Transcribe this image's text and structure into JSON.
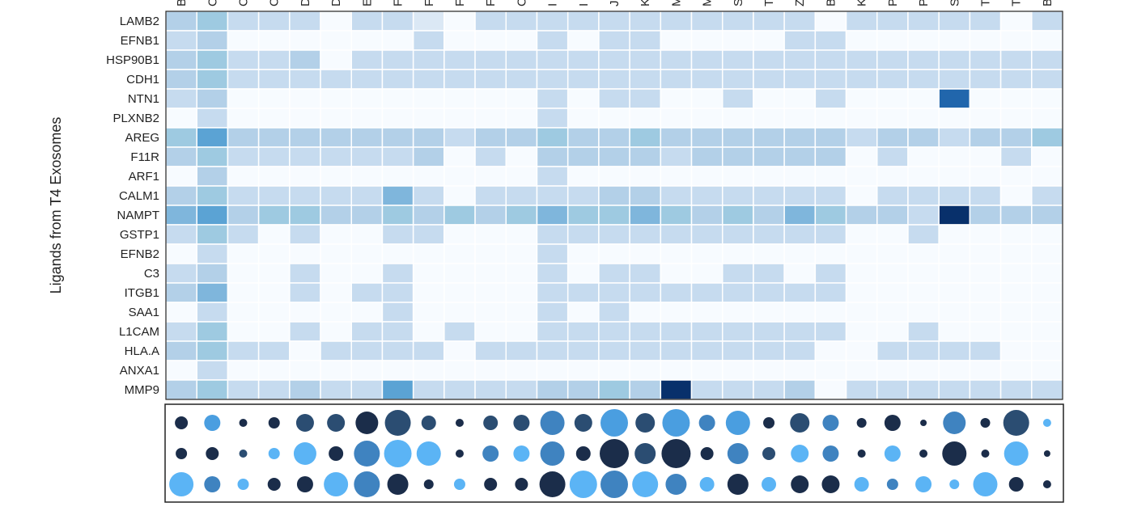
{
  "chart_data": [
    {
      "type": "heatmap",
      "y_label": "Ligands from T4 Exosomes",
      "categories": [
        "B",
        "C",
        "C",
        "C",
        "D",
        "D",
        "E",
        "F",
        "F",
        "F",
        "F",
        "C",
        "I",
        "I",
        "J",
        "K",
        "M",
        "M",
        "S",
        "T",
        "Z",
        "B",
        "K",
        "P",
        "P",
        "S",
        "T",
        "T",
        "B"
      ],
      "rows": [
        "LAMB2",
        "EFNB1",
        "HSP90B1",
        "CDH1",
        "NTN1",
        "PLXNB2",
        "AREG",
        "F11R",
        "ARF1",
        "CALM1",
        "NAMPT",
        "GSTP1",
        "EFNB2",
        "C3",
        "ITGB1",
        "SAA1",
        "L1CAM",
        "HLA.A",
        "ANXA1",
        "MMP9"
      ],
      "colorscale": [
        "#f7fbff",
        "#dbe8f5",
        "#c6dbef",
        "#b3d0e8",
        "#9ecae1",
        "#7fb6dc",
        "#5ba3d4",
        "#4a8fc8",
        "#2166ac",
        "#133f80",
        "#08306b"
      ],
      "values": [
        [
          3,
          4,
          2,
          2,
          2,
          0,
          2,
          2,
          1,
          0,
          2,
          2,
          2,
          2,
          2,
          2,
          2,
          2,
          2,
          2,
          2,
          0,
          2,
          2,
          2,
          2,
          2,
          0,
          2
        ],
        [
          2,
          3,
          0,
          0,
          0,
          0,
          0,
          0,
          2,
          0,
          0,
          0,
          2,
          0,
          2,
          2,
          0,
          0,
          0,
          0,
          2,
          2,
          0,
          0,
          0,
          0,
          0,
          0,
          0
        ],
        [
          3,
          4,
          2,
          2,
          3,
          0,
          2,
          2,
          2,
          2,
          2,
          2,
          2,
          2,
          2,
          2,
          2,
          2,
          2,
          2,
          2,
          2,
          2,
          2,
          2,
          2,
          2,
          2,
          2
        ],
        [
          3,
          4,
          2,
          2,
          2,
          2,
          2,
          2,
          2,
          2,
          2,
          2,
          2,
          2,
          2,
          2,
          2,
          2,
          2,
          2,
          2,
          2,
          2,
          2,
          2,
          2,
          2,
          2,
          2
        ],
        [
          2,
          3,
          0,
          0,
          0,
          0,
          0,
          0,
          0,
          0,
          0,
          0,
          2,
          0,
          2,
          2,
          0,
          0,
          2,
          0,
          0,
          2,
          0,
          0,
          0,
          8,
          0,
          0,
          0
        ],
        [
          0,
          2,
          0,
          0,
          0,
          0,
          0,
          0,
          0,
          0,
          0,
          0,
          2,
          0,
          0,
          0,
          0,
          0,
          0,
          0,
          0,
          0,
          0,
          0,
          0,
          0,
          0,
          0,
          0
        ],
        [
          4,
          6,
          3,
          3,
          3,
          3,
          3,
          3,
          3,
          2,
          3,
          3,
          4,
          3,
          3,
          4,
          3,
          3,
          3,
          3,
          3,
          3,
          2,
          3,
          3,
          2,
          3,
          3,
          4
        ],
        [
          3,
          4,
          2,
          2,
          2,
          2,
          2,
          2,
          3,
          0,
          2,
          0,
          3,
          3,
          3,
          3,
          2,
          3,
          3,
          3,
          3,
          3,
          0,
          2,
          0,
          0,
          0,
          2,
          0
        ],
        [
          0,
          3,
          0,
          0,
          0,
          0,
          0,
          0,
          0,
          0,
          0,
          0,
          2,
          0,
          0,
          0,
          0,
          0,
          0,
          0,
          0,
          0,
          0,
          0,
          0,
          0,
          0,
          0,
          0
        ],
        [
          3,
          4,
          2,
          2,
          2,
          2,
          2,
          5,
          2,
          0,
          2,
          2,
          2,
          2,
          3,
          3,
          2,
          2,
          2,
          2,
          2,
          2,
          0,
          2,
          2,
          2,
          2,
          0,
          2
        ],
        [
          5,
          6,
          3,
          4,
          4,
          3,
          3,
          4,
          3,
          4,
          3,
          4,
          5,
          4,
          4,
          5,
          4,
          3,
          4,
          3,
          5,
          4,
          3,
          3,
          2,
          10,
          3,
          3,
          3
        ],
        [
          2,
          4,
          2,
          0,
          2,
          0,
          0,
          2,
          2,
          0,
          0,
          0,
          2,
          2,
          2,
          2,
          2,
          2,
          2,
          2,
          2,
          2,
          0,
          0,
          2,
          0,
          0,
          0,
          0
        ],
        [
          0,
          2,
          0,
          0,
          0,
          0,
          0,
          0,
          0,
          0,
          0,
          0,
          2,
          0,
          0,
          0,
          0,
          0,
          0,
          0,
          0,
          0,
          0,
          0,
          0,
          0,
          0,
          0,
          0
        ],
        [
          2,
          3,
          0,
          0,
          2,
          0,
          0,
          2,
          0,
          0,
          0,
          0,
          2,
          0,
          2,
          2,
          0,
          0,
          2,
          2,
          0,
          2,
          0,
          0,
          0,
          0,
          0,
          0,
          0
        ],
        [
          3,
          5,
          0,
          0,
          2,
          0,
          2,
          2,
          0,
          0,
          0,
          0,
          2,
          2,
          2,
          2,
          2,
          2,
          2,
          2,
          2,
          2,
          0,
          0,
          0,
          0,
          0,
          0,
          0
        ],
        [
          0,
          2,
          0,
          0,
          0,
          0,
          0,
          2,
          0,
          0,
          0,
          0,
          2,
          0,
          2,
          0,
          0,
          0,
          0,
          0,
          0,
          0,
          0,
          0,
          0,
          0,
          0,
          0,
          0
        ],
        [
          2,
          4,
          0,
          0,
          2,
          0,
          2,
          2,
          0,
          2,
          0,
          0,
          2,
          2,
          2,
          2,
          2,
          2,
          2,
          2,
          2,
          2,
          0,
          0,
          2,
          0,
          0,
          0,
          0
        ],
        [
          3,
          4,
          2,
          2,
          0,
          2,
          2,
          2,
          2,
          0,
          2,
          2,
          2,
          2,
          2,
          2,
          2,
          2,
          2,
          2,
          2,
          0,
          0,
          2,
          2,
          2,
          2,
          0,
          0
        ],
        [
          0,
          2,
          0,
          0,
          0,
          0,
          0,
          0,
          0,
          0,
          0,
          0,
          0,
          0,
          0,
          0,
          0,
          0,
          0,
          0,
          0,
          0,
          0,
          0,
          0,
          0,
          0,
          0,
          0
        ],
        [
          3,
          4,
          2,
          2,
          3,
          2,
          2,
          6,
          2,
          2,
          2,
          2,
          3,
          3,
          4,
          3,
          10,
          2,
          2,
          2,
          3,
          0,
          2,
          2,
          2,
          2,
          2,
          2,
          2
        ]
      ]
    },
    {
      "type": "dot",
      "series": [
        {
          "values": [
            8,
            10,
            5,
            7,
            11,
            11,
            14,
            16,
            9,
            5,
            9,
            10,
            15,
            11,
            17,
            12,
            17,
            10,
            15,
            7,
            12,
            10,
            6,
            10,
            4,
            14,
            6,
            16,
            5
          ],
          "colors": [
            "#1b2d4a",
            "#4a9ee0",
            "#1b2d4a",
            "#1b2d4a",
            "#2b4d72",
            "#2b4d72",
            "#1b2d4a",
            "#2b4d72",
            "#2b4d72",
            "#1b2d4a",
            "#2b4d72",
            "#2b4d72",
            "#3f83c0",
            "#2b4d72",
            "#4a9ee0",
            "#2b4d72",
            "#4a9ee0",
            "#3f83c0",
            "#4a9ee0",
            "#1b2d4a",
            "#2b4d72",
            "#3f83c0",
            "#1b2d4a",
            "#1b2d4a",
            "#1b2d4a",
            "#3f83c0",
            "#1b2d4a",
            "#2b4d72",
            "#5bb4f5"
          ]
        },
        {
          "values": [
            7,
            8,
            5,
            7,
            14,
            9,
            16,
            17,
            15,
            5,
            10,
            10,
            15,
            9,
            18,
            13,
            18,
            8,
            13,
            8,
            11,
            10,
            5,
            10,
            5,
            15,
            5,
            15,
            4
          ],
          "colors": [
            "#1b2d4a",
            "#1b2d4a",
            "#2b4d72",
            "#5bb4f5",
            "#5bb4f5",
            "#1b2d4a",
            "#3f83c0",
            "#5bb4f5",
            "#5bb4f5",
            "#1b2d4a",
            "#3f83c0",
            "#5bb4f5",
            "#3f83c0",
            "#1b2d4a",
            "#1b2d4a",
            "#2b4d72",
            "#1b2d4a",
            "#1b2d4a",
            "#3f83c0",
            "#2b4d72",
            "#5bb4f5",
            "#3f83c0",
            "#1b2d4a",
            "#5bb4f5",
            "#1b2d4a",
            "#1b2d4a",
            "#1b2d4a",
            "#5bb4f5",
            "#1b2d4a"
          ]
        },
        {
          "values": [
            15,
            10,
            7,
            8,
            10,
            15,
            16,
            13,
            6,
            7,
            8,
            8,
            16,
            17,
            17,
            16,
            13,
            9,
            13,
            9,
            11,
            11,
            9,
            7,
            10,
            6,
            15,
            9,
            5
          ],
          "colors": [
            "#5bb4f5",
            "#3f83c0",
            "#5bb4f5",
            "#1b2d4a",
            "#1b2d4a",
            "#5bb4f5",
            "#3f83c0",
            "#1b2d4a",
            "#1b2d4a",
            "#5bb4f5",
            "#1b2d4a",
            "#1b2d4a",
            "#1b2d4a",
            "#5bb4f5",
            "#3f83c0",
            "#5bb4f5",
            "#3f83c0",
            "#5bb4f5",
            "#1b2d4a",
            "#5bb4f5",
            "#1b2d4a",
            "#1b2d4a",
            "#5bb4f5",
            "#3f83c0",
            "#5bb4f5",
            "#5bb4f5",
            "#5bb4f5",
            "#1b2d4a",
            "#1b2d4a"
          ]
        }
      ]
    }
  ]
}
